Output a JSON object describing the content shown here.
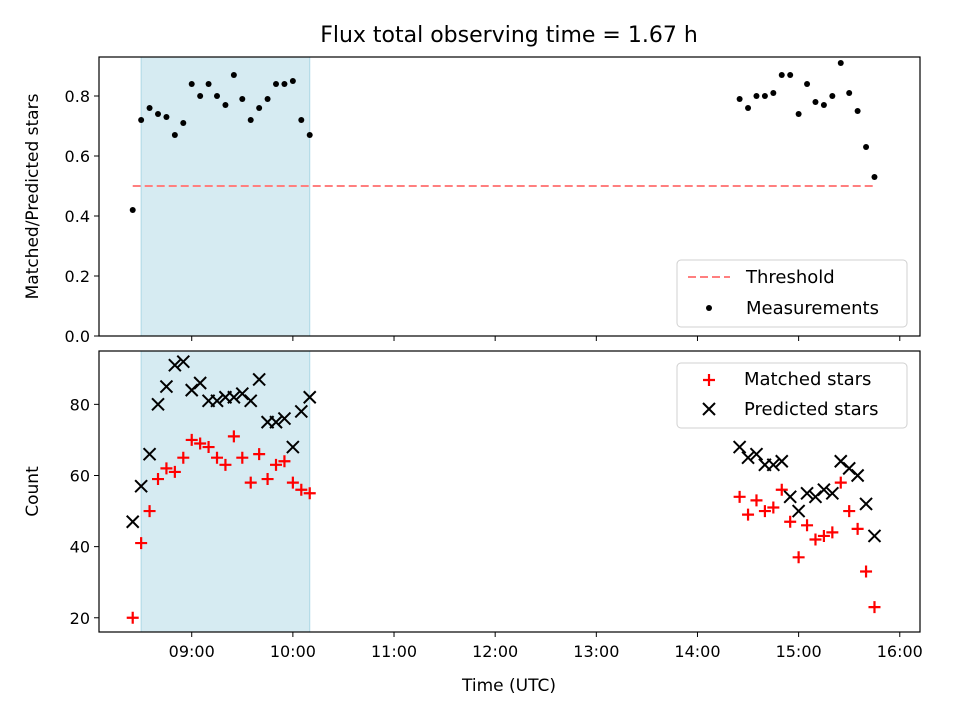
{
  "chart_data": [
    {
      "type": "scatter",
      "title": "Flux total observing time = 1.67 h",
      "ylabel": "Matched/Predicted stars",
      "xlabel": "",
      "x_unit": "time of day (UTC, HH:MM)",
      "xlim": [
        "08:05",
        "16:12"
      ],
      "ylim": [
        0,
        0.93
      ],
      "yticks": [
        0.0,
        0.2,
        0.4,
        0.6,
        0.8
      ],
      "ytick_labels": [
        "0.0",
        "0.2",
        "0.4",
        "0.6",
        "0.8"
      ],
      "xticks": [
        "09:00",
        "10:00",
        "11:00",
        "12:00",
        "13:00",
        "14:00",
        "15:00",
        "16:00"
      ],
      "shaded_span": {
        "x_start": "08:30",
        "x_end": "10:10",
        "color": "#add8e6"
      },
      "legend_position": "lower right",
      "series": [
        {
          "name": "Threshold",
          "kind": "dashed-line",
          "color": "#ff7f7f",
          "x": [
            "08:25",
            "15:45"
          ],
          "y": [
            0.5,
            0.5
          ]
        },
        {
          "name": "Measurements",
          "kind": "points",
          "color": "#000000",
          "x": [
            "08:25",
            "08:30",
            "08:35",
            "08:40",
            "08:45",
            "08:50",
            "08:55",
            "09:00",
            "09:05",
            "09:10",
            "09:15",
            "09:20",
            "09:25",
            "09:30",
            "09:35",
            "09:40",
            "09:45",
            "09:50",
            "09:55",
            "10:00",
            "10:05",
            "10:10",
            "14:25",
            "14:30",
            "14:35",
            "14:40",
            "14:45",
            "14:50",
            "14:55",
            "15:00",
            "15:05",
            "15:10",
            "15:15",
            "15:20",
            "15:25",
            "15:30",
            "15:35",
            "15:40",
            "15:45"
          ],
          "y": [
            0.42,
            0.72,
            0.76,
            0.74,
            0.73,
            0.67,
            0.71,
            0.84,
            0.8,
            0.84,
            0.8,
            0.77,
            0.87,
            0.79,
            0.72,
            0.76,
            0.79,
            0.84,
            0.84,
            0.85,
            0.72,
            0.67,
            0.79,
            0.76,
            0.8,
            0.8,
            0.81,
            0.87,
            0.87,
            0.74,
            0.84,
            0.78,
            0.77,
            0.8,
            0.91,
            0.81,
            0.75,
            0.63,
            0.53
          ]
        }
      ]
    },
    {
      "type": "scatter",
      "title": "",
      "ylabel": "Count",
      "xlabel": "Time (UTC)",
      "x_unit": "time of day (UTC, HH:MM)",
      "xlim": [
        "08:05",
        "16:12"
      ],
      "ylim": [
        16,
        95
      ],
      "yticks": [
        20,
        40,
        60,
        80
      ],
      "ytick_labels": [
        "20",
        "40",
        "60",
        "80"
      ],
      "xticks": [
        "09:00",
        "10:00",
        "11:00",
        "12:00",
        "13:00",
        "14:00",
        "15:00",
        "16:00"
      ],
      "xtick_labels": [
        "09:00",
        "10:00",
        "11:00",
        "12:00",
        "13:00",
        "14:00",
        "15:00",
        "16:00"
      ],
      "shaded_span": {
        "x_start": "08:30",
        "x_end": "10:10",
        "color": "#add8e6"
      },
      "legend_position": "upper right",
      "series": [
        {
          "name": "Matched stars",
          "marker": "+",
          "color": "#ff0000",
          "x": [
            "08:25",
            "08:30",
            "08:35",
            "08:40",
            "08:45",
            "08:50",
            "08:55",
            "09:00",
            "09:05",
            "09:10",
            "09:15",
            "09:20",
            "09:25",
            "09:30",
            "09:35",
            "09:40",
            "09:45",
            "09:50",
            "09:55",
            "10:00",
            "10:05",
            "10:10",
            "14:25",
            "14:30",
            "14:35",
            "14:40",
            "14:45",
            "14:50",
            "14:55",
            "15:00",
            "15:05",
            "15:10",
            "15:15",
            "15:20",
            "15:25",
            "15:30",
            "15:35",
            "15:40",
            "15:45"
          ],
          "y": [
            20,
            41,
            50,
            59,
            62,
            61,
            65,
            70,
            69,
            68,
            65,
            63,
            71,
            65,
            58,
            66,
            59,
            63,
            64,
            58,
            56,
            55,
            54,
            49,
            53,
            50,
            51,
            56,
            47,
            37,
            46,
            42,
            43,
            44,
            58,
            50,
            45,
            33,
            23
          ]
        },
        {
          "name": "Predicted stars",
          "marker": "x",
          "color": "#000000",
          "x": [
            "08:25",
            "08:30",
            "08:35",
            "08:40",
            "08:45",
            "08:50",
            "08:55",
            "09:00",
            "09:05",
            "09:10",
            "09:15",
            "09:20",
            "09:25",
            "09:30",
            "09:35",
            "09:40",
            "09:45",
            "09:50",
            "09:55",
            "10:00",
            "10:05",
            "10:10",
            "14:25",
            "14:30",
            "14:35",
            "14:40",
            "14:45",
            "14:50",
            "14:55",
            "15:00",
            "15:05",
            "15:10",
            "15:15",
            "15:20",
            "15:25",
            "15:30",
            "15:35",
            "15:40",
            "15:45"
          ],
          "y": [
            47,
            57,
            66,
            80,
            85,
            91,
            92,
            84,
            86,
            81,
            81,
            82,
            82,
            83,
            81,
            87,
            75,
            75,
            76,
            68,
            78,
            82,
            68,
            65,
            66,
            63,
            63,
            64,
            54,
            50,
            55,
            54,
            56,
            55,
            64,
            62,
            60,
            52,
            43
          ]
        }
      ]
    }
  ]
}
